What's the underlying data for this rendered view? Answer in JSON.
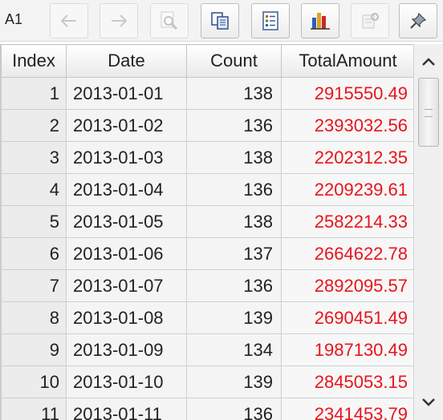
{
  "toolbar": {
    "cell_ref": "A1",
    "buttons": [
      {
        "name": "back-button",
        "icon": "arrow-left-icon",
        "enabled": false
      },
      {
        "name": "forward-button",
        "icon": "arrow-right-icon",
        "enabled": false
      },
      {
        "name": "zoom-button",
        "icon": "magnifier-icon",
        "enabled": false
      },
      {
        "name": "copy-button",
        "icon": "copy-icon",
        "enabled": true
      },
      {
        "name": "list-button",
        "icon": "list-icon",
        "enabled": true
      },
      {
        "name": "chart-button",
        "icon": "bar-chart-icon",
        "enabled": true
      },
      {
        "name": "settings-button",
        "icon": "settings-icon",
        "enabled": false
      },
      {
        "name": "pin-button",
        "icon": "pin-icon",
        "enabled": true
      }
    ]
  },
  "table": {
    "columns": [
      "Index",
      "Date",
      "Count",
      "TotalAmount"
    ],
    "rows": [
      [
        "1",
        "2013-01-01",
        "138",
        "2915550.49"
      ],
      [
        "2",
        "2013-01-02",
        "136",
        "2393032.56"
      ],
      [
        "3",
        "2013-01-03",
        "138",
        "2202312.35"
      ],
      [
        "4",
        "2013-01-04",
        "136",
        "2209239.61"
      ],
      [
        "5",
        "2013-01-05",
        "138",
        "2582214.33"
      ],
      [
        "6",
        "2013-01-06",
        "137",
        "2664622.78"
      ],
      [
        "7",
        "2013-01-07",
        "136",
        "2892095.57"
      ],
      [
        "8",
        "2013-01-08",
        "139",
        "2690451.49"
      ],
      [
        "9",
        "2013-01-09",
        "134",
        "1987130.49"
      ],
      [
        "10",
        "2013-01-10",
        "139",
        "2845053.15"
      ],
      [
        "11",
        "2013-01-11",
        "136",
        "2341453.79"
      ]
    ]
  },
  "colors": {
    "amount_text": "#e8141b",
    "grid_line": "#c8d0da"
  }
}
